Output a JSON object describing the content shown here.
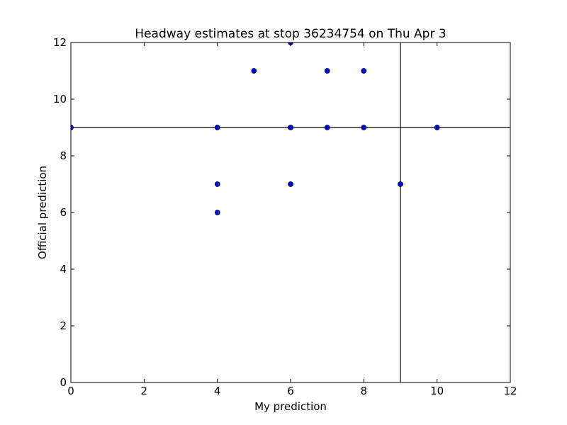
{
  "chart_data": {
    "type": "scatter",
    "title": "Headway estimates at stop 36234754 on Thu Apr 3",
    "x_label": "My prediction",
    "y_label": "Official prediction",
    "series": [
      {
        "color": "#0000ff",
        "x": [
          0,
          4,
          4,
          4,
          5,
          6,
          6,
          6,
          7,
          7,
          8,
          8,
          9,
          10
        ],
        "values": [
          9,
          9,
          7,
          6,
          11,
          12,
          9,
          7,
          11,
          9,
          11,
          9,
          7,
          9
        ]
      }
    ],
    "axvline": 9,
    "axhline": 9,
    "xlim": [
      0,
      12
    ],
    "ylim": [
      0,
      12
    ],
    "xticks": [
      0,
      2,
      4,
      6,
      8,
      10,
      12
    ],
    "yticks": [
      0,
      2,
      4,
      6,
      8,
      10,
      12
    ],
    "grid": false
  }
}
